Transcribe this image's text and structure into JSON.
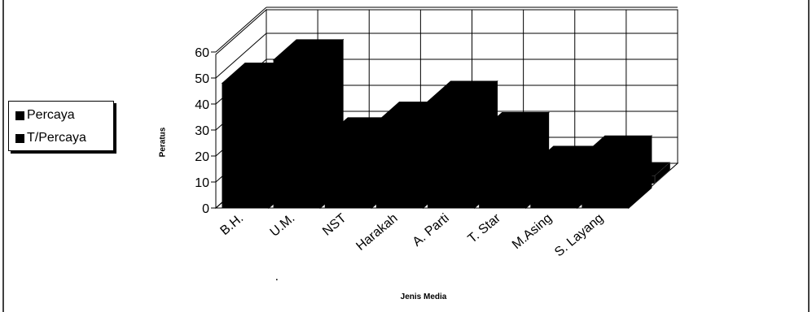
{
  "chart_data": {
    "type": "bar",
    "title": "",
    "xlabel": "Jenis Media",
    "ylabel": "Peratus",
    "ylim": [
      0,
      60
    ],
    "yticks": [
      0,
      10,
      20,
      30,
      40,
      50,
      60
    ],
    "grid": true,
    "legend_position": "left",
    "categories": [
      "B.H.",
      "U.M.",
      "NST",
      "Harakah",
      "A. Parti",
      "T. Star",
      "M.Asing",
      "S. Layang"
    ],
    "series": [
      {
        "name": "Percaya",
        "values": [
          48,
          57,
          27,
          33,
          41,
          29,
          16,
          20
        ],
        "color": "#000000"
      },
      {
        "name": "T/Percaya",
        "values": [
          4,
          2,
          2,
          4,
          3,
          4,
          5,
          3
        ],
        "color": "#000000"
      }
    ],
    "annotations": [
      "."
    ]
  }
}
